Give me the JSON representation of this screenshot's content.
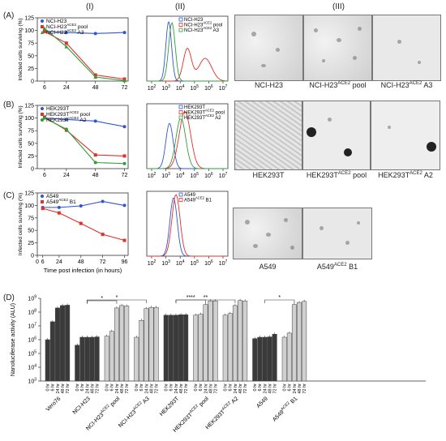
{
  "headers": {
    "col1": "(I)",
    "col2": "(II)",
    "col3": "(III)"
  },
  "panels": {
    "A": "(A)",
    "B": "(B)",
    "C": "(C)",
    "D": "(D)"
  },
  "survival_axes": {
    "ylabel": "Infected cells surviving (%)",
    "xlabel": "Time post infection (in hours)"
  },
  "colors": {
    "blue": "#2f55d4",
    "red": "#e0312b",
    "green": "#2f9e3a",
    "dark": "#3a3a3a",
    "light": "#d0d0d0"
  },
  "chart_data": [
    {
      "id": "A-I",
      "type": "line",
      "x": [
        6,
        24,
        48,
        72
      ],
      "xticks": [
        6,
        24,
        48,
        72
      ],
      "xlim": [
        0,
        75
      ],
      "ylim": [
        0,
        125
      ],
      "yticks": [
        0,
        25,
        50,
        75,
        100,
        125
      ],
      "series": [
        {
          "label": "NCI-H23",
          "sup": "",
          "sub": "",
          "color": "#2f55d4",
          "marker": "circle",
          "values": [
            98,
            96,
            94,
            96
          ]
        },
        {
          "label": "NCI-H23",
          "sup": "ACE2",
          "sub": " pool",
          "color": "#e0312b",
          "marker": "square",
          "values": [
            98,
            75,
            12,
            4
          ]
        },
        {
          "label": "NCI-H23",
          "sup": "ACE2",
          "sub": " A3",
          "color": "#2f9e3a",
          "marker": "triangle",
          "values": [
            104,
            68,
            8,
            1
          ]
        }
      ]
    },
    {
      "id": "B-I",
      "type": "line",
      "x": [
        6,
        24,
        48,
        72
      ],
      "xticks": [
        6,
        24,
        48,
        72
      ],
      "xlim": [
        0,
        75
      ],
      "ylim": [
        0,
        125
      ],
      "yticks": [
        0,
        25,
        50,
        75,
        100,
        125
      ],
      "series": [
        {
          "label": "HEK293T",
          "sup": "",
          "sub": "",
          "color": "#2f55d4",
          "marker": "circle",
          "values": [
            100,
            97,
            94,
            83
          ]
        },
        {
          "label": "HEK293T",
          "sup": "ACE2",
          "sub": " pool",
          "color": "#e0312b",
          "marker": "square",
          "values": [
            102,
            76,
            27,
            25
          ]
        },
        {
          "label": "HEK293T",
          "sup": "ACE2",
          "sub": " A2",
          "color": "#2f9e3a",
          "marker": "circle",
          "values": [
            100,
            78,
            12,
            10
          ]
        }
      ]
    },
    {
      "id": "C-I",
      "type": "line",
      "x": [
        6,
        24,
        48,
        72,
        96
      ],
      "xticks": [
        0,
        6,
        24,
        48,
        72,
        96
      ],
      "xlim": [
        0,
        100
      ],
      "ylim": [
        0,
        125
      ],
      "yticks": [
        0,
        25,
        50,
        75,
        100,
        125
      ],
      "series": [
        {
          "label": "A549",
          "sup": "",
          "sub": "",
          "color": "#2f55d4",
          "marker": "circle",
          "values": [
            96,
            96,
            99,
            108,
            100
          ]
        },
        {
          "label": "A549",
          "sup": "ACE2",
          "sub": " B1",
          "color": "#e0312b",
          "marker": "square",
          "values": [
            94,
            85,
            64,
            42,
            30
          ]
        }
      ]
    },
    {
      "id": "A-II",
      "type": "area",
      "xticks": [
        "10",
        "10",
        "10",
        "10",
        "10",
        "10"
      ],
      "xexp": [
        "2",
        "3",
        "4",
        "5",
        "6",
        "7"
      ],
      "series": [
        {
          "label": "NCI-H23",
          "sup": "",
          "sub": "",
          "color": "#2f55d4"
        },
        {
          "label": "NCI-H23",
          "sup": "ACE2",
          "sub": " pool",
          "color": "#e0312b"
        },
        {
          "label": "NCI-H23",
          "sup": "ACE2",
          "sub": " A3",
          "color": "#2f9e3a"
        }
      ]
    },
    {
      "id": "B-II",
      "type": "area",
      "xticks": [
        "10",
        "10",
        "10",
        "10",
        "10",
        "10"
      ],
      "xexp": [
        "2",
        "3",
        "4",
        "5",
        "6",
        "7"
      ],
      "series": [
        {
          "label": "HEK293T",
          "sup": "",
          "sub": "",
          "color": "#2f55d4"
        },
        {
          "label": "HEK293T",
          "sup": "ACE2",
          "sub": " pool",
          "color": "#e0312b"
        },
        {
          "label": "HEK293T",
          "sup": "ACE2",
          "sub": " A2",
          "color": "#2f9e3a"
        }
      ]
    },
    {
      "id": "C-II",
      "type": "area",
      "xticks": [
        "10",
        "10",
        "10",
        "10",
        "10",
        "10"
      ],
      "xexp": [
        "2",
        "3",
        "4",
        "5",
        "6",
        "7"
      ],
      "series": [
        {
          "label": "A549",
          "sup": "",
          "sub": "",
          "color": "#2f55d4"
        },
        {
          "label": "A549",
          "sup": "ACE2",
          "sub": " B1",
          "color": "#e0312b"
        }
      ]
    },
    {
      "id": "D",
      "type": "bar",
      "ylabel": "Nanoluciferase activity (ALU)",
      "ylog": [
        1000,
        1000000000
      ],
      "yticks": [
        "10",
        "10",
        "10",
        "10",
        "10",
        "10",
        "10"
      ],
      "yexp": [
        "3",
        "4",
        "5",
        "6",
        "7",
        "8",
        "9"
      ],
      "time_labels": [
        "0 hr",
        "6 hr",
        "24 hr",
        "48 hr",
        "72 hr"
      ],
      "groups": [
        {
          "name": "Vero76",
          "sup": "",
          "suffix": "",
          "tone": "dark",
          "values": [
            1000000,
            20000000,
            200000000,
            300000000,
            320000000
          ]
        },
        {
          "name": "NCI-H23",
          "sup": "",
          "suffix": "",
          "tone": "dark",
          "values": [
            400000,
            1500000,
            1500000,
            1500000,
            1600000
          ]
        },
        {
          "name": "NCI-H23",
          "sup": "ACE2",
          "suffix": " pool",
          "tone": "light",
          "values": [
            1800000,
            4000000,
            200000000,
            300000000,
            280000000
          ]
        },
        {
          "name": "NCI-H23",
          "sup": "ACE2",
          "suffix": " A3",
          "tone": "light",
          "values": [
            1500000,
            25000000,
            180000000,
            220000000,
            220000000
          ]
        },
        {
          "name": "HEK293T",
          "sup": "",
          "suffix": "",
          "tone": "dark",
          "values": [
            60000000,
            60000000,
            60000000,
            65000000,
            65000000
          ]
        },
        {
          "name": "HEK293T",
          "sup": "ACE2",
          "suffix": " pool",
          "tone": "light",
          "values": [
            60000000,
            70000000,
            350000000,
            650000000,
            650000000
          ]
        },
        {
          "name": "HEK293T",
          "sup": "ACE2",
          "suffix": " A2",
          "tone": "light",
          "values": [
            60000000,
            80000000,
            300000000,
            700000000,
            650000000
          ]
        },
        {
          "name": "A549",
          "sup": "",
          "suffix": "",
          "tone": "dark",
          "values": [
            1200000,
            1500000,
            1500000,
            1600000,
            2500000
          ]
        },
        {
          "name": "A549",
          "sup": "ACE2",
          "suffix": " B1",
          "tone": "light",
          "values": [
            1500000,
            3000000,
            350000000,
            500000000,
            600000000
          ]
        }
      ],
      "significance": [
        {
          "from_group": 1,
          "to_group": 2,
          "label": "*"
        },
        {
          "from_group": 1,
          "to_group": 3,
          "label": "*"
        },
        {
          "from_group": 4,
          "to_group": 5,
          "label": "****"
        },
        {
          "from_group": 4,
          "to_group": 6,
          "label": "**"
        },
        {
          "from_group": 7,
          "to_group": 8,
          "label": "*"
        }
      ]
    }
  ],
  "micrographs": [
    {
      "id": "A1",
      "caption": "NCI-H23",
      "sup": "",
      "suffix": ""
    },
    {
      "id": "A2",
      "caption": "NCI-H23",
      "sup": "ACE2",
      "suffix": " pool"
    },
    {
      "id": "A3",
      "caption": "NCI-H23",
      "sup": "ACE2",
      "suffix": " A3"
    },
    {
      "id": "B1",
      "caption": "HEK293T",
      "sup": "",
      "suffix": ""
    },
    {
      "id": "B2",
      "caption": "HEK293T",
      "sup": "ACE2",
      "suffix": " pool"
    },
    {
      "id": "B3",
      "caption": "HEK293T",
      "sup": "ACE2",
      "suffix": " A2"
    },
    {
      "id": "C1",
      "caption": "A549",
      "sup": "",
      "suffix": ""
    },
    {
      "id": "C2",
      "caption": "A549",
      "sup": "ACE2",
      "suffix": " B1"
    }
  ]
}
